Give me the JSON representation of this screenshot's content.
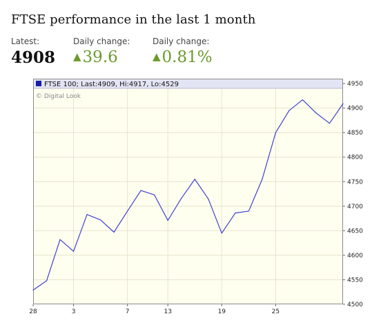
{
  "header": {
    "title": "FTSE performance in the last 1 month"
  },
  "stats": {
    "latest_label": "Latest:",
    "latest_value": "4908",
    "daily_points_label": "Daily change:",
    "daily_points_value": "39.6",
    "daily_pct_label": "Daily change:",
    "daily_pct_value": "0.81%",
    "up_arrow": "▲",
    "positive_color": "#6b9a2c"
  },
  "chart_data": {
    "type": "line",
    "legend": "FTSE 100; Last:4909, Hi:4917, Lo:4529",
    "watermark": "© Digital Look",
    "series": [
      {
        "values": [
          4529,
          4548,
          4632,
          4608,
          4683,
          4672,
          4647,
          4690,
          4732,
          4723,
          4671,
          4716,
          4755,
          4715,
          4645,
          4686,
          4690,
          4755,
          4850,
          4895,
          4917,
          4890,
          4869,
          4909
        ],
        "color": "#3f3fcf"
      }
    ],
    "xticks": [
      {
        "index": 0,
        "label": "28"
      },
      {
        "index": 3,
        "label": "3"
      },
      {
        "index": 7,
        "label": "7"
      },
      {
        "index": 10,
        "label": "13"
      },
      {
        "index": 14,
        "label": "19"
      },
      {
        "index": 18,
        "label": "25"
      }
    ],
    "yticks": [
      4500,
      4550,
      4600,
      4650,
      4700,
      4750,
      4800,
      4850,
      4900,
      4950
    ],
    "ylim": [
      4500,
      4960
    ],
    "grid": true,
    "legend_position": "top"
  }
}
